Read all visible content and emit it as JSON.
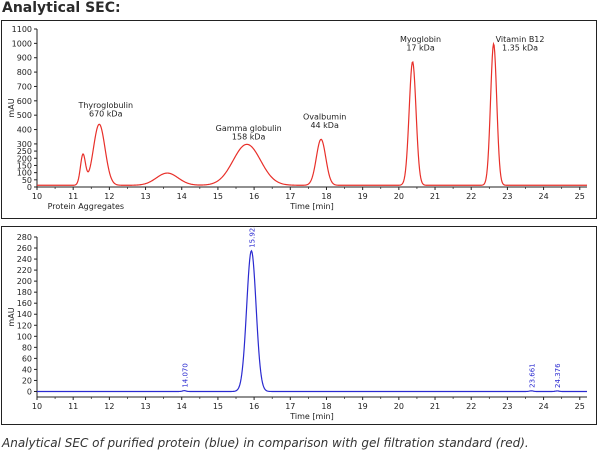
{
  "heading": "Analytical SEC:",
  "caption": "Analytical SEC of purified protein (blue) in comparison with gel filtration standard (red).",
  "colors": {
    "standard": "#e8302a",
    "sample": "#2a2ad0",
    "axis": "#222222",
    "frame": "#222222"
  },
  "chart_data": [
    {
      "type": "line",
      "xlabel": "Time [min]",
      "ylabel": "mAU",
      "xlim": [
        10,
        25.2
      ],
      "ylim": [
        0,
        1100
      ],
      "xticks": [
        10,
        11,
        12,
        13,
        14,
        15,
        16,
        17,
        18,
        19,
        20,
        21,
        22,
        23,
        24,
        25
      ],
      "yticks": [
        0,
        50,
        100,
        150,
        200,
        250,
        300,
        400,
        500,
        600,
        700,
        800,
        900,
        1000,
        1100
      ],
      "grid": false,
      "baseline": 12,
      "series": [
        {
          "color": "#e8302a",
          "peaks": [
            {
              "center": 11.27,
              "height": 210,
              "width": 0.07
            },
            {
              "center": 11.72,
              "height": 425,
              "width": 0.16
            },
            {
              "center": 13.6,
              "height": 85,
              "width": 0.3
            },
            {
              "center": 15.8,
              "height": 285,
              "width": 0.38
            },
            {
              "center": 17.85,
              "height": 320,
              "width": 0.13
            },
            {
              "center": 20.38,
              "height": 860,
              "width": 0.095
            },
            {
              "center": 22.62,
              "height": 985,
              "width": 0.085
            }
          ]
        }
      ],
      "annotations": [
        {
          "text": "Thyroglobulin",
          "x": 11.9,
          "y": 550
        },
        {
          "text": "670 kDa",
          "x": 11.9,
          "y": 490
        },
        {
          "text": "Gamma globulin",
          "x": 15.85,
          "y": 390
        },
        {
          "text": "158 kDa",
          "x": 15.85,
          "y": 330
        },
        {
          "text": "Ovalbumin",
          "x": 17.95,
          "y": 470
        },
        {
          "text": "44 kDa",
          "x": 17.95,
          "y": 410
        },
        {
          "text": "Myoglobin",
          "x": 20.6,
          "y": 1010
        },
        {
          "text": "17 kDa",
          "x": 20.6,
          "y": 950
        },
        {
          "text": "Vitamin B12",
          "x": 23.35,
          "y": 1010
        },
        {
          "text": "1.35 kDa",
          "x": 23.35,
          "y": 950
        },
        {
          "text": "Protein Aggregates",
          "x": 11.35,
          "y": -80
        }
      ]
    },
    {
      "type": "line",
      "xlabel": "Time [min]",
      "ylabel": "mAU",
      "xlim": [
        10,
        25.2
      ],
      "ylim": [
        -10,
        280
      ],
      "xticks": [
        10,
        11,
        12,
        13,
        14,
        15,
        16,
        17,
        18,
        19,
        20,
        21,
        22,
        23,
        24,
        25
      ],
      "yticks": [
        0,
        20,
        40,
        60,
        80,
        100,
        120,
        140,
        160,
        180,
        200,
        220,
        240,
        260,
        280
      ],
      "grid": false,
      "baseline": 0,
      "series": [
        {
          "color": "#2a2ad0",
          "peaks": [
            {
              "center": 14.07,
              "height": 1.5,
              "width": 0.05
            },
            {
              "center": 15.925,
              "height": 255,
              "width": 0.13
            },
            {
              "center": 23.661,
              "height": 1.2,
              "width": 0.05
            },
            {
              "center": 24.376,
              "height": 1.0,
              "width": 0.05
            }
          ]
        }
      ],
      "peak_labels": [
        {
          "text": "14.070",
          "x": 14.07
        },
        {
          "text": "15.925",
          "x": 15.925
        },
        {
          "text": "23.661",
          "x": 23.661
        },
        {
          "text": "24.376",
          "x": 24.376
        }
      ]
    }
  ]
}
